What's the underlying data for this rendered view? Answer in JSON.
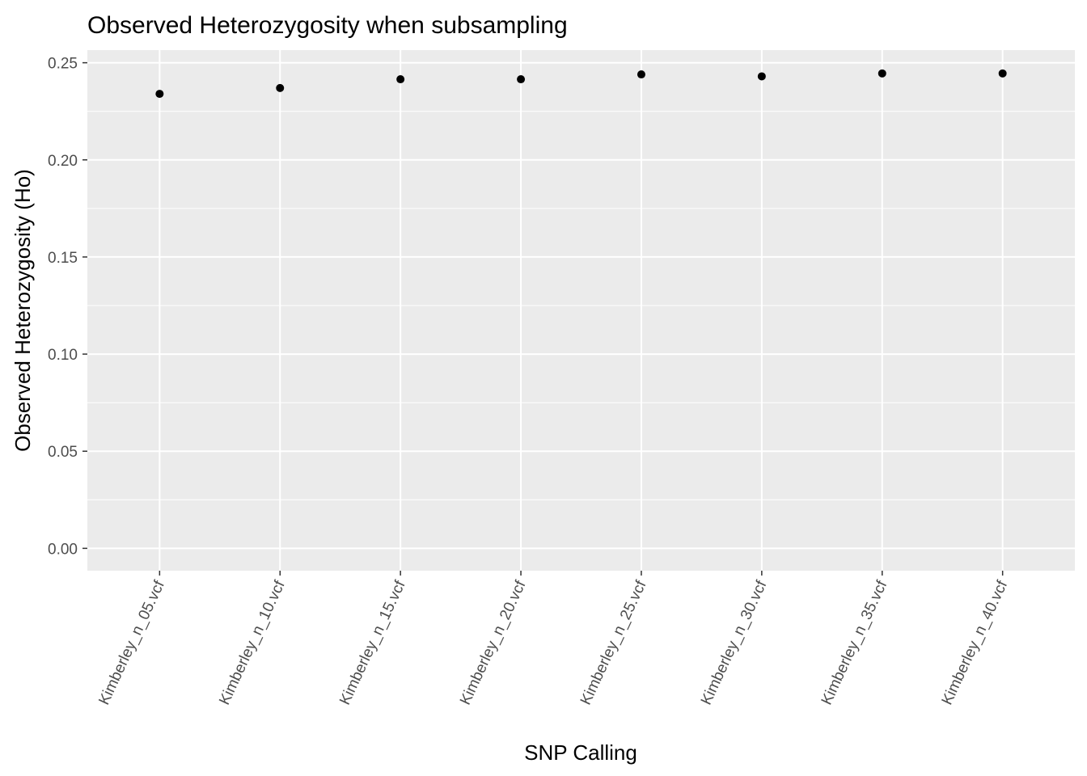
{
  "chart_data": {
    "type": "scatter",
    "title": "Observed Heterozygosity when subsampling",
    "xlabel": "SNP Calling",
    "ylabel": "Observed Heterozygosity (Ho)",
    "categories": [
      "Kimberley_n_05.vcf",
      "Kimberley_n_10.vcf",
      "Kimberley_n_15.vcf",
      "Kimberley_n_20.vcf",
      "Kimberley_n_25.vcf",
      "Kimberley_n_30.vcf",
      "Kimberley_n_35.vcf",
      "Kimberley_n_40.vcf"
    ],
    "values": [
      0.234,
      0.237,
      0.2415,
      0.2415,
      0.244,
      0.243,
      0.2445,
      0.2445
    ],
    "ylim": [
      -0.0115,
      0.2565
    ],
    "yticks": [
      0.0,
      0.05,
      0.1,
      0.15,
      0.2,
      0.25
    ],
    "ytick_labels": [
      "0.00",
      "0.05",
      "0.10",
      "0.15",
      "0.20",
      "0.25"
    ],
    "grid": true,
    "legend": "none",
    "colors": {
      "panel_background": "#ebebeb",
      "grid_major": "#ffffff",
      "point": "#000000",
      "tick_text": "#4d4d4d",
      "tick_mark": "#333333"
    }
  }
}
